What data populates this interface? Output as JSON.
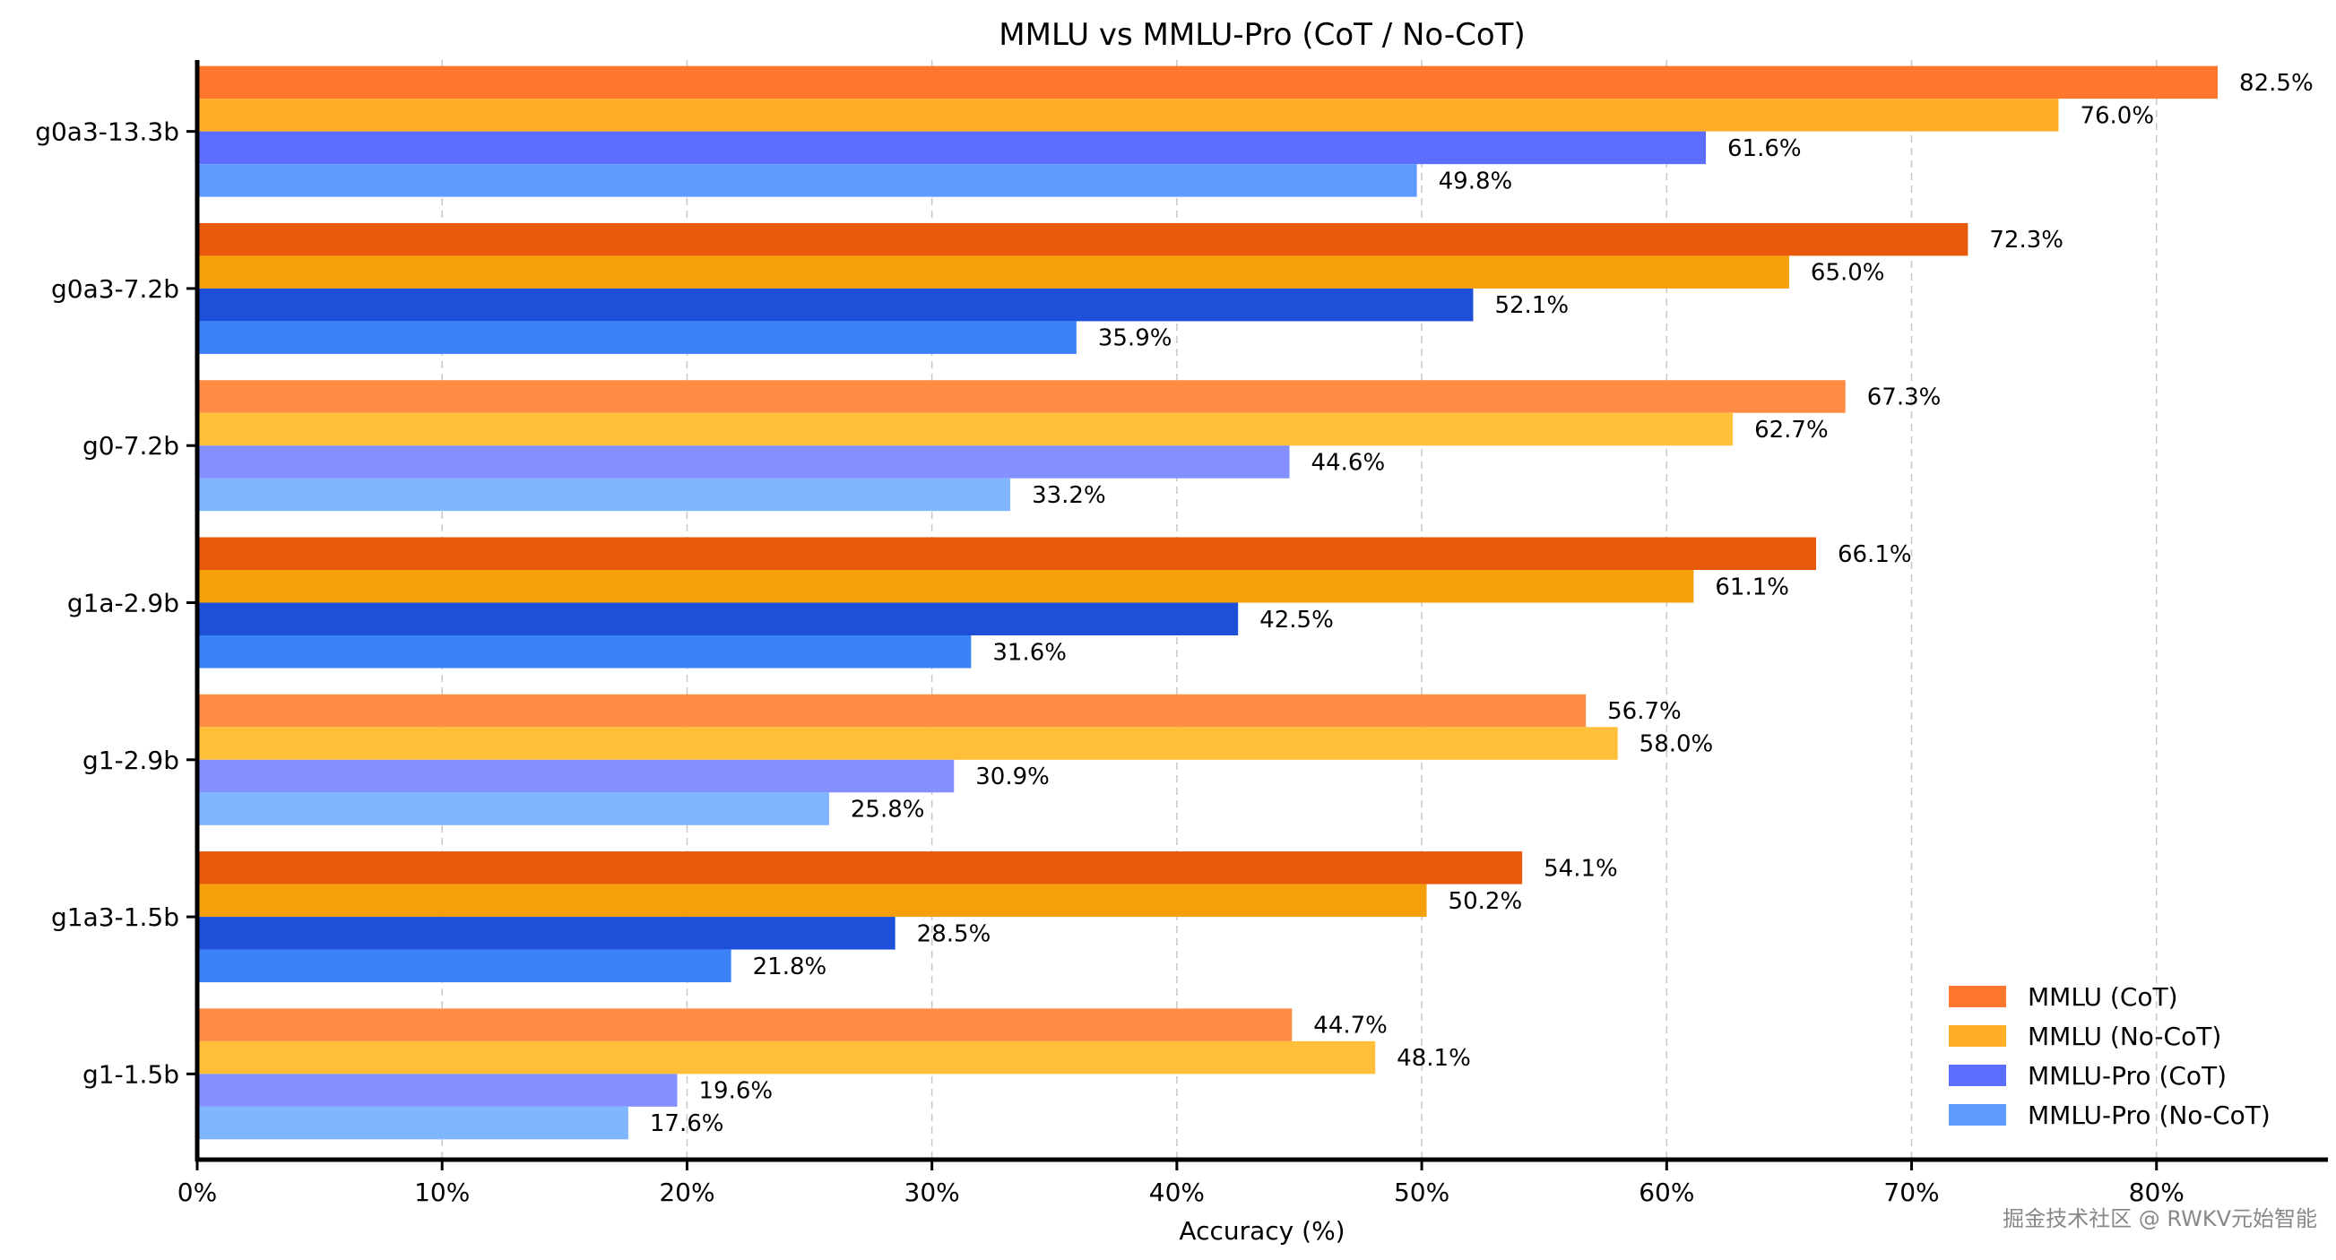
{
  "chart_data": {
    "type": "bar",
    "orientation": "horizontal",
    "title": "MMLU vs MMLU-Pro (CoT / No-CoT)",
    "xlabel": "Accuracy (%)",
    "ylabel": "",
    "xlim": [
      0,
      87
    ],
    "xticks": [
      "0%",
      "10%",
      "20%",
      "30%",
      "40%",
      "50%",
      "60%",
      "70%",
      "80%"
    ],
    "grid": "vertical dashed",
    "legend_position": "bottom-right",
    "categories": [
      "g0a3-13.3b",
      "g0a3-7.2b",
      "g0-7.2b",
      "g1a-2.9b",
      "g1-2.9b",
      "g1a3-1.5b",
      "g1-1.5b"
    ],
    "series": [
      {
        "name": "MMLU (CoT)",
        "values": [
          82.5,
          72.3,
          67.3,
          66.1,
          56.7,
          54.1,
          44.7
        ]
      },
      {
        "name": "MMLU (No-CoT)",
        "values": [
          76.0,
          65.0,
          62.7,
          61.1,
          58.0,
          50.2,
          48.1
        ]
      },
      {
        "name": "MMLU-Pro (CoT)",
        "values": [
          61.6,
          52.1,
          44.6,
          42.5,
          30.9,
          28.5,
          19.6
        ]
      },
      {
        "name": "MMLU-Pro (No-CoT)",
        "values": [
          49.8,
          35.9,
          33.2,
          31.6,
          25.8,
          21.8,
          17.6
        ]
      }
    ],
    "palettes": [
      [
        "#FF762E",
        "#FFAE28",
        "#5B6EFF",
        "#5F9BFF"
      ],
      [
        "#E8590C",
        "#F59F0A",
        "#1D4FD8",
        "#3B82F6"
      ],
      [
        "#FF8C45",
        "#FFBF38",
        "#8490FF",
        "#80B5FF"
      ]
    ],
    "group_palette": [
      0,
      1,
      2,
      1,
      2,
      1,
      2
    ]
  },
  "watermark": "掘金技术社区 @ RWKV元始智能"
}
